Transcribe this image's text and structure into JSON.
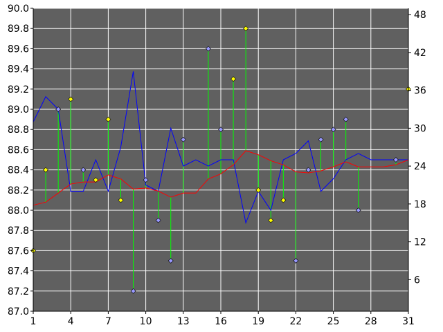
{
  "chart_data": {
    "type": "line",
    "grid": true,
    "colors": {
      "background": "#ffffff",
      "plot_area": "#606060",
      "grid": "#ffffff",
      "axis": "#000000",
      "blue_line": "#0000ff",
      "red_line": "#ff0000",
      "spikes": "#00ff00",
      "diamond_blue": "#9999ff",
      "diamond_yellow": "#ffff00"
    },
    "x_axis": {
      "range": [
        1,
        31
      ],
      "ticks": [
        1,
        4,
        7,
        10,
        13,
        16,
        19,
        22,
        25,
        28,
        31
      ],
      "tick_labels": [
        "1",
        "4",
        "7",
        "10",
        "13",
        "16",
        "19",
        "22",
        "25",
        "28",
        "31"
      ]
    },
    "y_axis_left": {
      "range": [
        87.0,
        90.0
      ],
      "ticks": [
        87.0,
        87.2,
        87.4,
        87.6,
        87.8,
        88.0,
        88.2,
        88.4,
        88.6,
        88.8,
        89.0,
        89.2,
        89.4,
        89.6,
        89.8,
        90.0
      ],
      "tick_labels": [
        "87.0",
        "87.2",
        "87.4",
        "87.6",
        "87.8",
        "88.0",
        "88.2",
        "88.4",
        "88.6",
        "88.8",
        "89.0",
        "89.2",
        "89.4",
        "89.6",
        "89.8",
        "90.0"
      ]
    },
    "y_axis_right": {
      "range": [
        1,
        49
      ],
      "ticks": [
        6,
        12,
        18,
        24,
        30,
        36,
        42,
        48
      ],
      "tick_labels": [
        "6",
        "12",
        "18",
        "24",
        "30",
        "36",
        "42",
        "48"
      ]
    },
    "series": [
      {
        "kind": "line",
        "axis": "right",
        "color": "#0000ff",
        "x": [
          1,
          2,
          3,
          4,
          5,
          6,
          7,
          8,
          9,
          10,
          11,
          12,
          13,
          14,
          15,
          16,
          17,
          18,
          19,
          20,
          21,
          22,
          23,
          24,
          25,
          26,
          27,
          28,
          29,
          30,
          31
        ],
        "values": [
          31,
          35,
          33,
          20,
          20,
          25,
          20,
          27,
          39,
          21,
          20,
          30,
          24,
          25,
          24,
          25,
          25,
          15,
          20,
          17,
          25,
          26,
          28,
          20,
          22,
          25,
          26,
          25,
          25,
          25,
          25
        ]
      },
      {
        "kind": "line",
        "axis": "left",
        "color": "#ff0000",
        "x": [
          1,
          2,
          3,
          4,
          5,
          6,
          7,
          8,
          9,
          10,
          11,
          12,
          13,
          14,
          15,
          16,
          17,
          18,
          19,
          20,
          21,
          22,
          23,
          24,
          25,
          26,
          27,
          28,
          29,
          30,
          31
        ],
        "values": [
          88.05,
          88.08,
          88.17,
          88.26,
          88.28,
          88.28,
          88.35,
          88.31,
          88.21,
          88.22,
          88.19,
          88.13,
          88.17,
          88.17,
          88.31,
          88.36,
          88.45,
          88.59,
          88.55,
          88.49,
          88.45,
          88.38,
          88.37,
          88.39,
          88.43,
          88.48,
          88.43,
          88.43,
          88.43,
          88.45,
          88.5
        ]
      },
      {
        "kind": "spikes",
        "axis": "left",
        "baseline": "red",
        "x": [
          1,
          2,
          3,
          4,
          5,
          6,
          7,
          8,
          9,
          10,
          11,
          12,
          13,
          15,
          16,
          17,
          18,
          19,
          20,
          21,
          22,
          23,
          24,
          25,
          26,
          27,
          30,
          31
        ],
        "values": [
          87.6,
          88.4,
          89.0,
          89.1,
          88.4,
          88.3,
          88.9,
          88.1,
          87.2,
          88.3,
          87.9,
          87.5,
          88.7,
          89.6,
          88.8,
          89.3,
          89.8,
          88.2,
          87.9,
          88.1,
          87.5,
          88.4,
          88.7,
          88.8,
          88.9,
          88.0,
          88.5,
          89.2
        ],
        "marker": [
          "yellow",
          "yellow",
          "blue",
          "yellow",
          "blue",
          "yellow",
          "yellow",
          "yellow",
          "blue",
          "blue",
          "blue",
          "blue",
          "blue",
          "blue",
          "blue",
          "yellow",
          "yellow",
          "yellow",
          "yellow",
          "yellow",
          "blue",
          "blue",
          "blue",
          "blue",
          "blue",
          "blue",
          "blue",
          "yellow"
        ]
      }
    ]
  }
}
